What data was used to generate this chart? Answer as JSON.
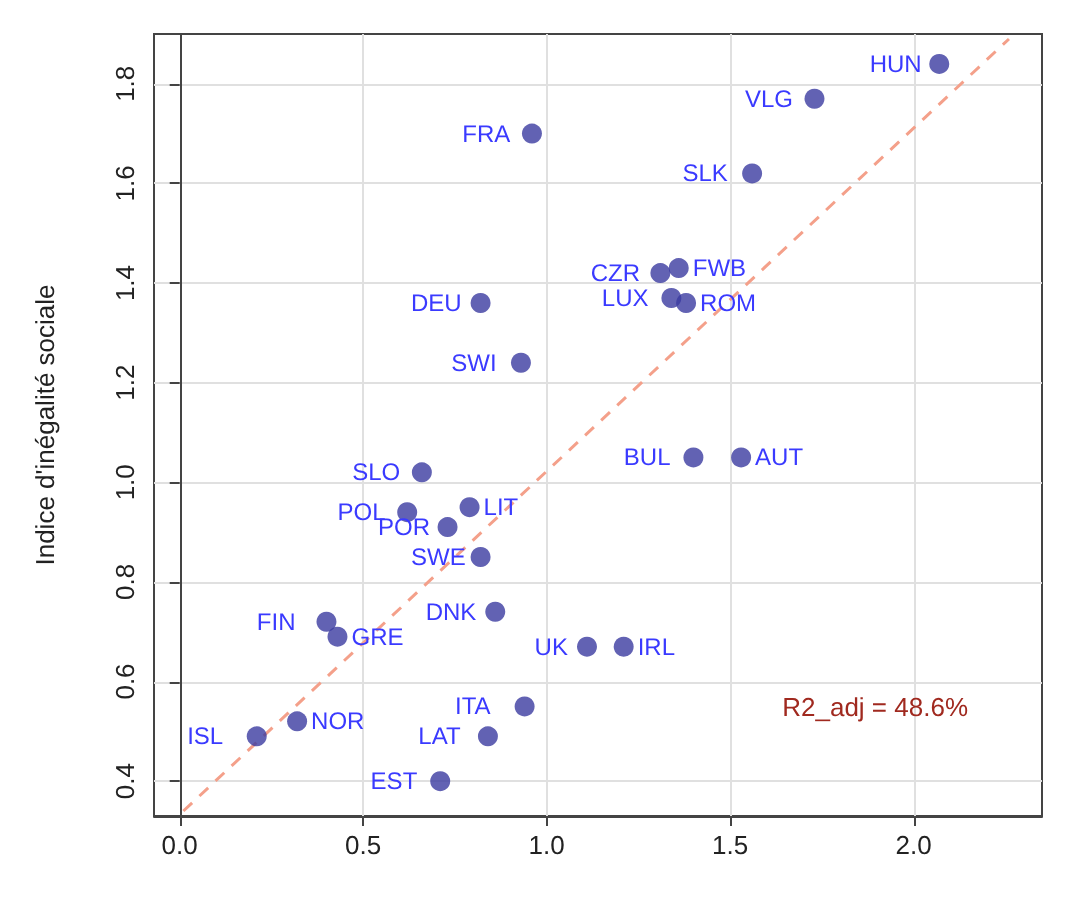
{
  "chart_data": {
    "type": "scatter",
    "ylabel": "Indice d'inégalité sociale",
    "xlim": [
      -0.07,
      2.35
    ],
    "xticks": [
      {
        "value": 0,
        "label": "0.0"
      },
      {
        "value": 0.5,
        "label": "0.5"
      },
      {
        "value": 1,
        "label": "1.0"
      },
      {
        "value": 1.5,
        "label": "1.5"
      },
      {
        "value": 2,
        "label": "2.0"
      }
    ],
    "ylim": [
      0.33,
      1.9
    ],
    "yticks": [
      {
        "value": 0.4,
        "label": "0.4"
      },
      {
        "value": 0.6,
        "label": "0.6"
      },
      {
        "value": 0.8,
        "label": "0.8"
      },
      {
        "value": 1,
        "label": "1.0"
      },
      {
        "value": 1.2,
        "label": "1.2"
      },
      {
        "value": 1.4,
        "label": "1.4"
      },
      {
        "value": 1.6,
        "label": "1.6"
      },
      {
        "value": 1.8,
        "label": "1.8"
      }
    ],
    "grid": true,
    "marker": "circle",
    "series": [
      {
        "color": "#3b3ba0",
        "x": [
          2.07,
          1.73,
          0.96,
          1.56,
          1.36,
          1.31,
          1.34,
          1.38,
          0.82,
          0.93,
          1.4,
          1.53,
          0.66,
          0.62,
          0.79,
          0.73,
          0.82,
          0.86,
          0.4,
          0.43,
          1.11,
          1.21,
          0.94,
          0.32,
          0.21,
          0.84,
          0.71
        ],
        "values": [
          1.84,
          1.77,
          1.7,
          1.62,
          1.43,
          1.42,
          1.37,
          1.36,
          1.36,
          1.24,
          1.05,
          1.05,
          1.02,
          0.94,
          0.95,
          0.91,
          0.85,
          0.74,
          0.72,
          0.69,
          0.67,
          0.67,
          0.55,
          0.52,
          0.49,
          0.49,
          0.4
        ]
      },
      {
        "type": "line",
        "color": "#f4a08a",
        "line_style": "dashed",
        "marker": "none",
        "x": [
          0.01,
          2.26
        ],
        "values": [
          0.34,
          1.89
        ]
      }
    ],
    "annotations": [
      {
        "text": "HUN",
        "x": 2.07,
        "y": 1.84
      },
      {
        "text": "VLG",
        "x": 1.73,
        "y": 1.77
      },
      {
        "text": "FRA",
        "x": 0.96,
        "y": 1.7
      },
      {
        "text": "SLK",
        "x": 1.56,
        "y": 1.62
      },
      {
        "text": "FWB",
        "x": 1.36,
        "y": 1.43
      },
      {
        "text": "CZR",
        "x": 1.31,
        "y": 1.42
      },
      {
        "text": "LUX",
        "x": 1.34,
        "y": 1.37
      },
      {
        "text": "ROM",
        "x": 1.38,
        "y": 1.36
      },
      {
        "text": "DEU",
        "x": 0.82,
        "y": 1.36
      },
      {
        "text": "SWI",
        "x": 0.93,
        "y": 1.24
      },
      {
        "text": "BUL",
        "x": 1.4,
        "y": 1.05
      },
      {
        "text": "AUT",
        "x": 1.53,
        "y": 1.05
      },
      {
        "text": "SLO",
        "x": 0.66,
        "y": 1.02
      },
      {
        "text": "POL",
        "x": 0.62,
        "y": 0.94
      },
      {
        "text": "LIT",
        "x": 0.79,
        "y": 0.95
      },
      {
        "text": "POR",
        "x": 0.73,
        "y": 0.91
      },
      {
        "text": "SWE",
        "x": 0.82,
        "y": 0.85
      },
      {
        "text": "DNK",
        "x": 0.86,
        "y": 0.74
      },
      {
        "text": "FIN",
        "x": 0.4,
        "y": 0.72
      },
      {
        "text": "GRE",
        "x": 0.43,
        "y": 0.69
      },
      {
        "text": "UK",
        "x": 1.11,
        "y": 0.67
      },
      {
        "text": "IRL",
        "x": 1.21,
        "y": 0.67
      },
      {
        "text": "ITA",
        "x": 0.94,
        "y": 0.55
      },
      {
        "text": "NOR",
        "x": 0.32,
        "y": 0.52
      },
      {
        "text": "ISL",
        "x": 0.21,
        "y": 0.49
      },
      {
        "text": "LAT",
        "x": 0.84,
        "y": 0.49
      },
      {
        "text": "EST",
        "x": 0.71,
        "y": 0.4
      },
      "R2_adj = 48.6%"
    ]
  }
}
